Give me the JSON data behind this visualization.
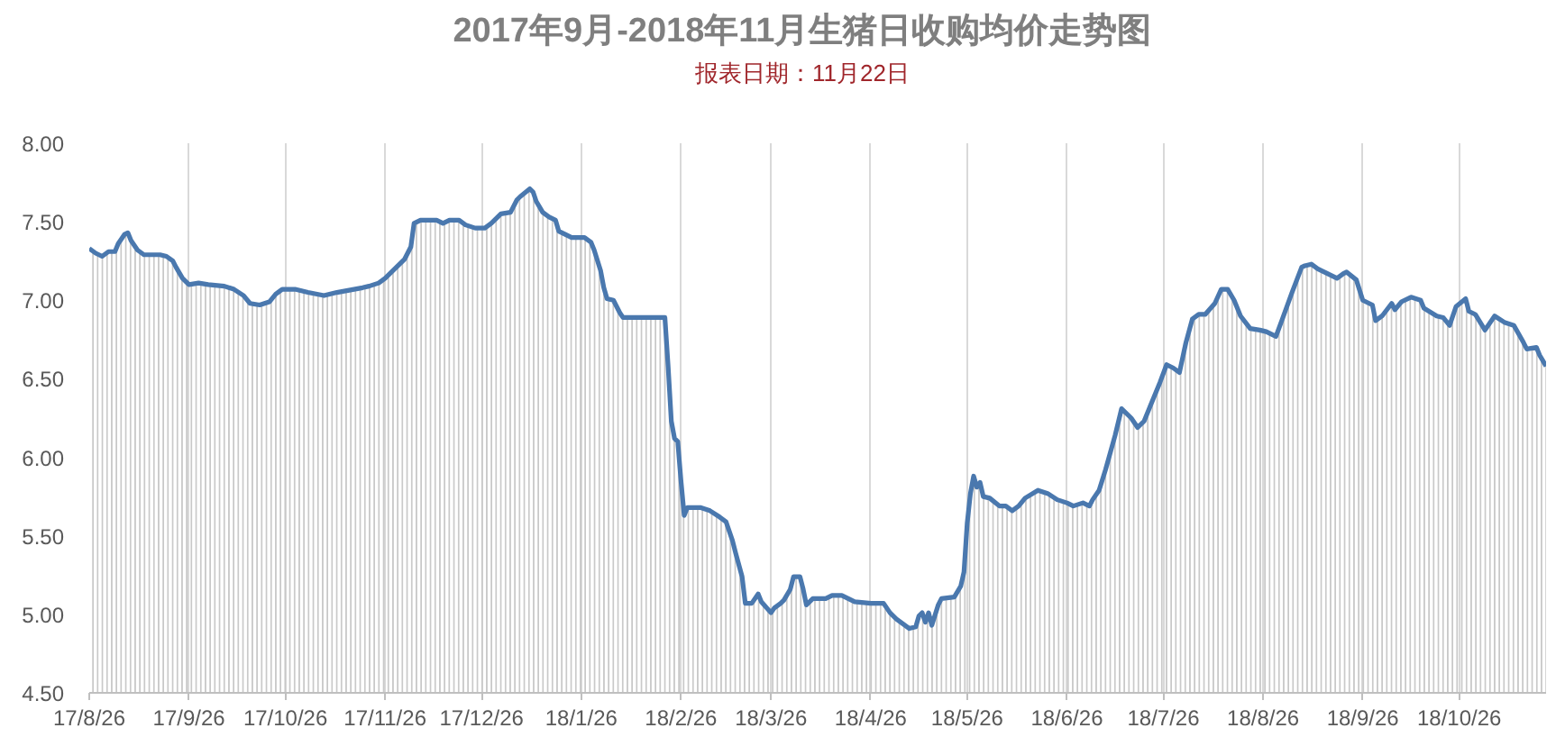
{
  "chart_data": {
    "type": "area",
    "title": "2017年9月-2018年11月生猪日收购均价走势图",
    "subtitle": "报表日期：11月22日",
    "x": [
      "2017-08-26",
      "2017-08-28",
      "2017-08-30",
      "2017-09-01",
      "2017-09-03",
      "2017-09-04",
      "2017-09-06",
      "2017-09-07",
      "2017-09-08",
      "2017-09-10",
      "2017-09-12",
      "2017-09-17",
      "2017-09-19",
      "2017-09-21",
      "2017-09-22",
      "2017-09-24",
      "2017-09-26",
      "2017-09-29",
      "2017-10-02",
      "2017-10-07",
      "2017-10-10",
      "2017-10-13",
      "2017-10-15",
      "2017-10-18",
      "2017-10-21",
      "2017-10-23",
      "2017-10-25",
      "2017-10-29",
      "2017-11-02",
      "2017-11-07",
      "2017-11-11",
      "2017-11-19",
      "2017-11-21",
      "2017-11-24",
      "2017-11-26",
      "2017-11-30",
      "2017-12-02",
      "2017-12-04",
      "2017-12-05",
      "2017-12-07",
      "2017-12-12",
      "2017-12-14",
      "2017-12-16",
      "2017-12-19",
      "2017-12-21",
      "2017-12-24",
      "2017-12-27",
      "2017-12-29",
      "2018-01-01",
      "2018-01-04",
      "2018-01-06",
      "2018-01-07",
      "2018-01-10",
      "2018-01-11",
      "2018-01-12",
      "2018-01-14",
      "2018-01-16",
      "2018-01-18",
      "2018-01-19",
      "2018-01-21",
      "2018-01-23",
      "2018-01-27",
      "2018-01-29",
      "2018-01-30",
      "2018-02-01",
      "2018-02-02",
      "2018-02-03",
      "2018-02-05",
      "2018-02-07",
      "2018-02-08",
      "2018-02-21",
      "2018-02-22",
      "2018-02-23",
      "2018-02-24",
      "2018-02-25",
      "2018-02-26",
      "2018-02-27",
      "2018-02-28",
      "2018-03-04",
      "2018-03-07",
      "2018-03-10",
      "2018-03-12",
      "2018-03-14",
      "2018-03-15",
      "2018-03-17",
      "2018-03-18",
      "2018-03-20",
      "2018-03-22",
      "2018-03-23",
      "2018-03-26",
      "2018-03-27",
      "2018-03-29",
      "2018-03-30",
      "2018-04-01",
      "2018-04-02",
      "2018-04-04",
      "2018-04-05",
      "2018-04-06",
      "2018-04-08",
      "2018-04-12",
      "2018-04-14",
      "2018-04-17",
      "2018-04-21",
      "2018-04-26",
      "2018-04-30",
      "2018-05-02",
      "2018-05-04",
      "2018-05-06",
      "2018-05-08",
      "2018-05-10",
      "2018-05-11",
      "2018-05-12",
      "2018-05-13",
      "2018-05-14",
      "2018-05-15",
      "2018-05-17",
      "2018-05-18",
      "2018-05-22",
      "2018-05-24",
      "2018-05-25",
      "2018-05-26",
      "2018-05-27",
      "2018-05-28",
      "2018-05-29",
      "2018-05-30",
      "2018-05-31",
      "2018-06-02",
      "2018-06-05",
      "2018-06-07",
      "2018-06-09",
      "2018-06-11",
      "2018-06-13",
      "2018-06-17",
      "2018-06-20",
      "2018-06-23",
      "2018-06-26",
      "2018-06-28",
      "2018-07-01",
      "2018-07-03",
      "2018-07-04",
      "2018-07-06",
      "2018-07-08",
      "2018-07-11",
      "2018-07-13",
      "2018-07-16",
      "2018-07-18",
      "2018-07-20",
      "2018-07-22",
      "2018-07-25",
      "2018-07-27",
      "2018-07-29",
      "2018-07-31",
      "2018-08-02",
      "2018-08-04",
      "2018-08-06",
      "2018-08-08",
      "2018-08-11",
      "2018-08-13",
      "2018-08-15",
      "2018-08-17",
      "2018-08-19",
      "2018-08-22",
      "2018-08-25",
      "2018-08-27",
      "2018-08-30",
      "2018-09-01",
      "2018-09-04",
      "2018-09-07",
      "2018-09-08",
      "2018-09-10",
      "2018-09-12",
      "2018-09-15",
      "2018-09-18",
      "2018-09-20",
      "2018-09-21",
      "2018-09-24",
      "2018-09-26",
      "2018-09-29",
      "2018-09-30",
      "2018-10-02",
      "2018-10-05",
      "2018-10-06",
      "2018-10-08",
      "2018-10-11",
      "2018-10-14",
      "2018-10-15",
      "2018-10-19",
      "2018-10-21",
      "2018-10-23",
      "2018-10-25",
      "2018-10-28",
      "2018-10-29",
      "2018-10-31",
      "2018-11-03",
      "2018-11-06",
      "2018-11-09",
      "2018-11-12",
      "2018-11-15",
      "2018-11-16",
      "2018-11-19",
      "2018-11-20",
      "2018-11-22"
    ],
    "values": [
      7.33,
      7.3,
      7.28,
      7.31,
      7.31,
      7.36,
      7.42,
      7.43,
      7.38,
      7.32,
      7.29,
      7.29,
      7.28,
      7.25,
      7.21,
      7.14,
      7.1,
      7.11,
      7.1,
      7.09,
      7.07,
      7.03,
      6.98,
      6.97,
      6.99,
      7.04,
      7.07,
      7.07,
      7.05,
      7.03,
      7.05,
      7.08,
      7.09,
      7.11,
      7.14,
      7.22,
      7.26,
      7.34,
      7.49,
      7.51,
      7.51,
      7.49,
      7.51,
      7.51,
      7.48,
      7.46,
      7.46,
      7.49,
      7.55,
      7.56,
      7.64,
      7.66,
      7.71,
      7.69,
      7.63,
      7.56,
      7.53,
      7.51,
      7.44,
      7.42,
      7.4,
      7.4,
      7.37,
      7.32,
      7.19,
      7.08,
      7.01,
      7.0,
      6.92,
      6.89,
      6.89,
      6.58,
      6.23,
      6.12,
      6.1,
      5.85,
      5.63,
      5.68,
      5.68,
      5.66,
      5.62,
      5.59,
      5.47,
      5.39,
      5.24,
      5.07,
      5.07,
      5.13,
      5.08,
      5.01,
      5.04,
      5.07,
      5.09,
      5.16,
      5.24,
      5.24,
      5.16,
      5.06,
      5.1,
      5.1,
      5.12,
      5.12,
      5.08,
      5.07,
      5.07,
      5.01,
      4.97,
      4.94,
      4.91,
      4.92,
      4.99,
      5.01,
      4.95,
      5.01,
      4.93,
      5.06,
      5.1,
      5.11,
      5.18,
      5.27,
      5.58,
      5.77,
      5.88,
      5.81,
      5.84,
      5.75,
      5.74,
      5.69,
      5.69,
      5.66,
      5.69,
      5.74,
      5.79,
      5.77,
      5.73,
      5.71,
      5.69,
      5.71,
      5.69,
      5.73,
      5.79,
      5.92,
      6.14,
      6.31,
      6.25,
      6.19,
      6.23,
      6.33,
      6.48,
      6.59,
      6.57,
      6.54,
      6.73,
      6.88,
      6.91,
      6.91,
      6.98,
      7.07,
      7.07,
      7.0,
      6.9,
      6.82,
      6.81,
      6.8,
      6.77,
      6.88,
      7.05,
      7.21,
      7.22,
      7.23,
      7.2,
      7.17,
      7.14,
      7.17,
      7.18,
      7.13,
      7.0,
      6.97,
      6.87,
      6.9,
      6.98,
      6.94,
      6.99,
      7.02,
      7.0,
      6.95,
      6.9,
      6.89,
      6.84,
      6.96,
      7.01,
      6.93,
      6.91,
      6.81,
      6.9,
      6.86,
      6.84,
      6.73,
      6.69,
      6.7,
      6.65,
      6.58
    ],
    "color": "#4a78ae",
    "xlim": [
      "2017-08-26",
      "2018-11-22"
    ],
    "xticks": [
      {
        "value": "2017-08-26",
        "label": "17/8/26"
      },
      {
        "value": "2017-09-26",
        "label": "17/9/26"
      },
      {
        "value": "2017-10-26",
        "label": "17/10/26"
      },
      {
        "value": "2017-11-26",
        "label": "17/11/26"
      },
      {
        "value": "2017-12-26",
        "label": "17/12/26"
      },
      {
        "value": "2018-01-26",
        "label": "18/1/26"
      },
      {
        "value": "2018-02-26",
        "label": "18/2/26"
      },
      {
        "value": "2018-03-26",
        "label": "18/3/26"
      },
      {
        "value": "2018-04-26",
        "label": "18/4/26"
      },
      {
        "value": "2018-05-26",
        "label": "18/5/26"
      },
      {
        "value": "2018-06-26",
        "label": "18/6/26"
      },
      {
        "value": "2018-07-26",
        "label": "18/7/26"
      },
      {
        "value": "2018-08-26",
        "label": "18/8/26"
      },
      {
        "value": "2018-09-26",
        "label": "18/9/26"
      },
      {
        "value": "2018-10-26",
        "label": "18/10/26"
      }
    ],
    "ylim": [
      4.5,
      8.0
    ],
    "yticks": [
      {
        "value": 4.5,
        "label": "4.50"
      },
      {
        "value": 5.0,
        "label": "5.00"
      },
      {
        "value": 5.5,
        "label": "5.50"
      },
      {
        "value": 6.0,
        "label": "6.00"
      },
      {
        "value": 6.5,
        "label": "6.50"
      },
      {
        "value": 7.0,
        "label": "7.00"
      },
      {
        "value": 7.5,
        "label": "7.50"
      },
      {
        "value": 8.0,
        "label": "8.00"
      }
    ],
    "grid": "x"
  }
}
